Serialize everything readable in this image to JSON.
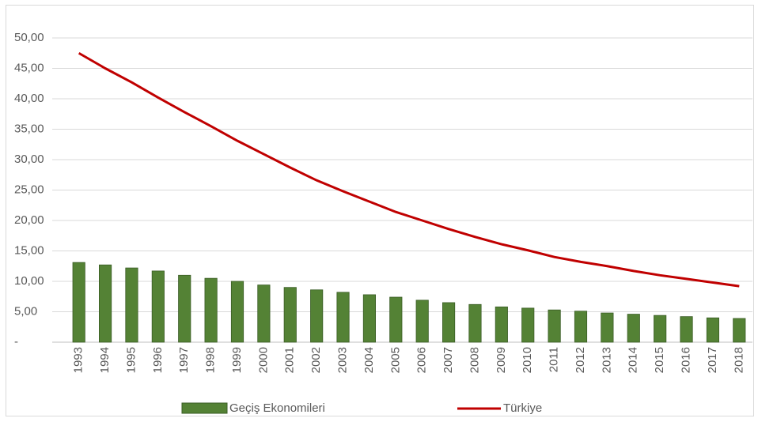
{
  "chart_data": {
    "type": "bar-line",
    "categories": [
      "1993",
      "1994",
      "1995",
      "1996",
      "1997",
      "1998",
      "1999",
      "2000",
      "2001",
      "2002",
      "2003",
      "2004",
      "2005",
      "2006",
      "2007",
      "2008",
      "2009",
      "2010",
      "2011",
      "2012",
      "2013",
      "2014",
      "2015",
      "2016",
      "2017",
      "2018"
    ],
    "series": [
      {
        "name": "Geçiş Ekonomileri",
        "type": "bar",
        "color": "#548235",
        "values": [
          13.1,
          12.7,
          12.2,
          11.7,
          11.0,
          10.5,
          10.0,
          9.4,
          9.0,
          8.6,
          8.2,
          7.8,
          7.4,
          6.9,
          6.5,
          6.2,
          5.8,
          5.6,
          5.3,
          5.1,
          4.8,
          4.6,
          4.4,
          4.2,
          4.0,
          3.9
        ]
      },
      {
        "name": "Türkiye",
        "type": "line",
        "color": "#c00000",
        "values": [
          47.5,
          45.0,
          42.7,
          40.2,
          37.8,
          35.5,
          33.1,
          30.9,
          28.7,
          26.6,
          24.8,
          23.1,
          21.4,
          20.0,
          18.6,
          17.3,
          16.1,
          15.1,
          14.0,
          13.2,
          12.5,
          11.7,
          11.0,
          10.4,
          9.8,
          9.2
        ]
      }
    ],
    "ylim": [
      0,
      50
    ],
    "yticks": [
      {
        "value": 0,
        "label": "-"
      },
      {
        "value": 5,
        "label": "5,00"
      },
      {
        "value": 10,
        "label": "10,00"
      },
      {
        "value": 15,
        "label": "15,00"
      },
      {
        "value": 20,
        "label": "20,00"
      },
      {
        "value": 25,
        "label": "25,00"
      },
      {
        "value": 30,
        "label": "30,00"
      },
      {
        "value": 35,
        "label": "35,00"
      },
      {
        "value": 40,
        "label": "40,00"
      },
      {
        "value": 45,
        "label": "45,00"
      },
      {
        "value": 50,
        "label": "50,00"
      }
    ],
    "grid": true,
    "legend": "bottom"
  }
}
